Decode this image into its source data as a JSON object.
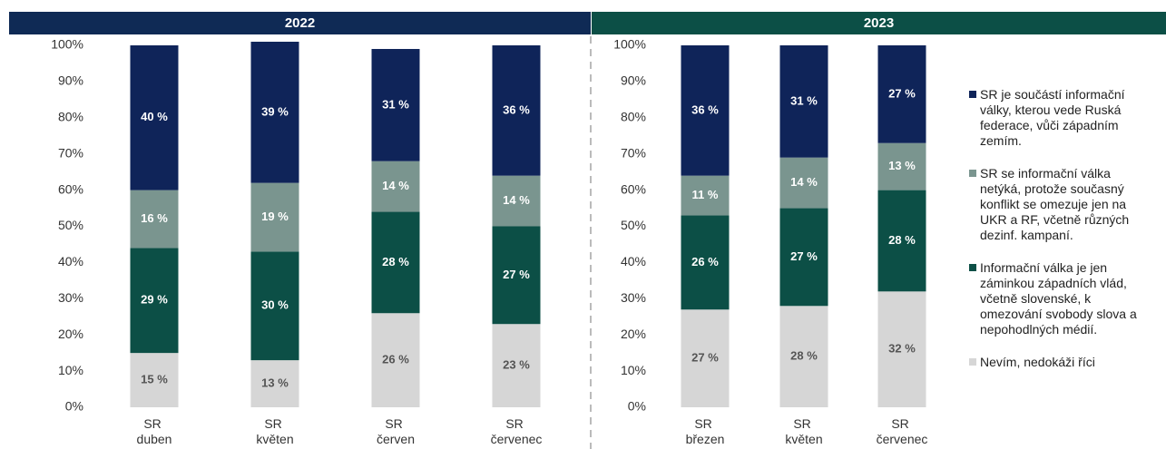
{
  "chart_data": [
    {
      "type": "stacked_bar",
      "title": "2022",
      "header_color": "#0f2a55",
      "categories": [
        "SR duben",
        "SR květen",
        "SR červen",
        "SR červenec"
      ],
      "ylim": [
        0,
        100
      ],
      "yticks": [
        {
          "value": 0,
          "label": "0%"
        },
        {
          "value": 10,
          "label": "10%"
        },
        {
          "value": 20,
          "label": "20%"
        },
        {
          "value": 30,
          "label": "30%"
        },
        {
          "value": 40,
          "label": "40%"
        },
        {
          "value": 50,
          "label": "50%"
        },
        {
          "value": 60,
          "label": "60%"
        },
        {
          "value": 70,
          "label": "70%"
        },
        {
          "value": 80,
          "label": "80%"
        },
        {
          "value": 90,
          "label": "90%"
        },
        {
          "value": 100,
          "label": "100%"
        }
      ],
      "series": [
        {
          "color": "#d6d6d6",
          "values": [
            15,
            13,
            26,
            23
          ],
          "value_labels": [
            "15 %",
            "13 %",
            "26 %",
            "23 %"
          ]
        },
        {
          "color": "#0c4f46",
          "values": [
            29,
            30,
            28,
            27
          ],
          "value_labels": [
            "29 %",
            "30 %",
            "28 %",
            "27 %"
          ]
        },
        {
          "color": "#7a958f",
          "values": [
            16,
            19,
            14,
            14
          ],
          "value_labels": [
            "16 %",
            "19 %",
            "14 %",
            "14 %"
          ]
        },
        {
          "color": "#0f2459",
          "values": [
            40,
            39,
            31,
            36
          ],
          "value_labels": [
            "40 %",
            "39 %",
            "31 %",
            "36 %"
          ]
        }
      ]
    },
    {
      "type": "stacked_bar",
      "title": "2023",
      "header_color": "#0c4f46",
      "categories": [
        "SR březen",
        "SR květen",
        "SR červenec"
      ],
      "ylim": [
        0,
        100
      ],
      "yticks": [
        {
          "value": 0,
          "label": "0%"
        },
        {
          "value": 10,
          "label": "10%"
        },
        {
          "value": 20,
          "label": "20%"
        },
        {
          "value": 30,
          "label": "30%"
        },
        {
          "value": 40,
          "label": "40%"
        },
        {
          "value": 50,
          "label": "50%"
        },
        {
          "value": 60,
          "label": "60%"
        },
        {
          "value": 70,
          "label": "70%"
        },
        {
          "value": 80,
          "label": "80%"
        },
        {
          "value": 90,
          "label": "90%"
        },
        {
          "value": 100,
          "label": "100%"
        }
      ],
      "series": [
        {
          "name": "Nevím, nedokáži říci",
          "color": "#d6d6d6",
          "values": [
            27,
            28,
            32
          ],
          "value_labels": [
            "27 %",
            "28 %",
            "32 %"
          ]
        },
        {
          "name": "Informační válka je jen záminkou západních vlád, včetně slovenské, k omezování svobody slova a nepohodlných médií.",
          "color": "#0c4f46",
          "values": [
            26,
            27,
            28
          ],
          "value_labels": [
            "26 %",
            "27 %",
            "28 %"
          ]
        },
        {
          "name": "SR se informační válka netýká, protože současný konflikt se omezuje jen na UKR a RF, včetně různých dezinf. kampaní.",
          "color": "#7a958f",
          "values": [
            11,
            14,
            13
          ],
          "value_labels": [
            "11 %",
            "14 %",
            "13 %"
          ]
        },
        {
          "name": "SR je součástí informační války, kterou vede Ruská federace, vůči západním zemím.",
          "color": "#0f2459",
          "values": [
            36,
            31,
            27
          ],
          "value_labels": [
            "36 %",
            "31 %",
            "27 %"
          ]
        }
      ]
    }
  ]
}
